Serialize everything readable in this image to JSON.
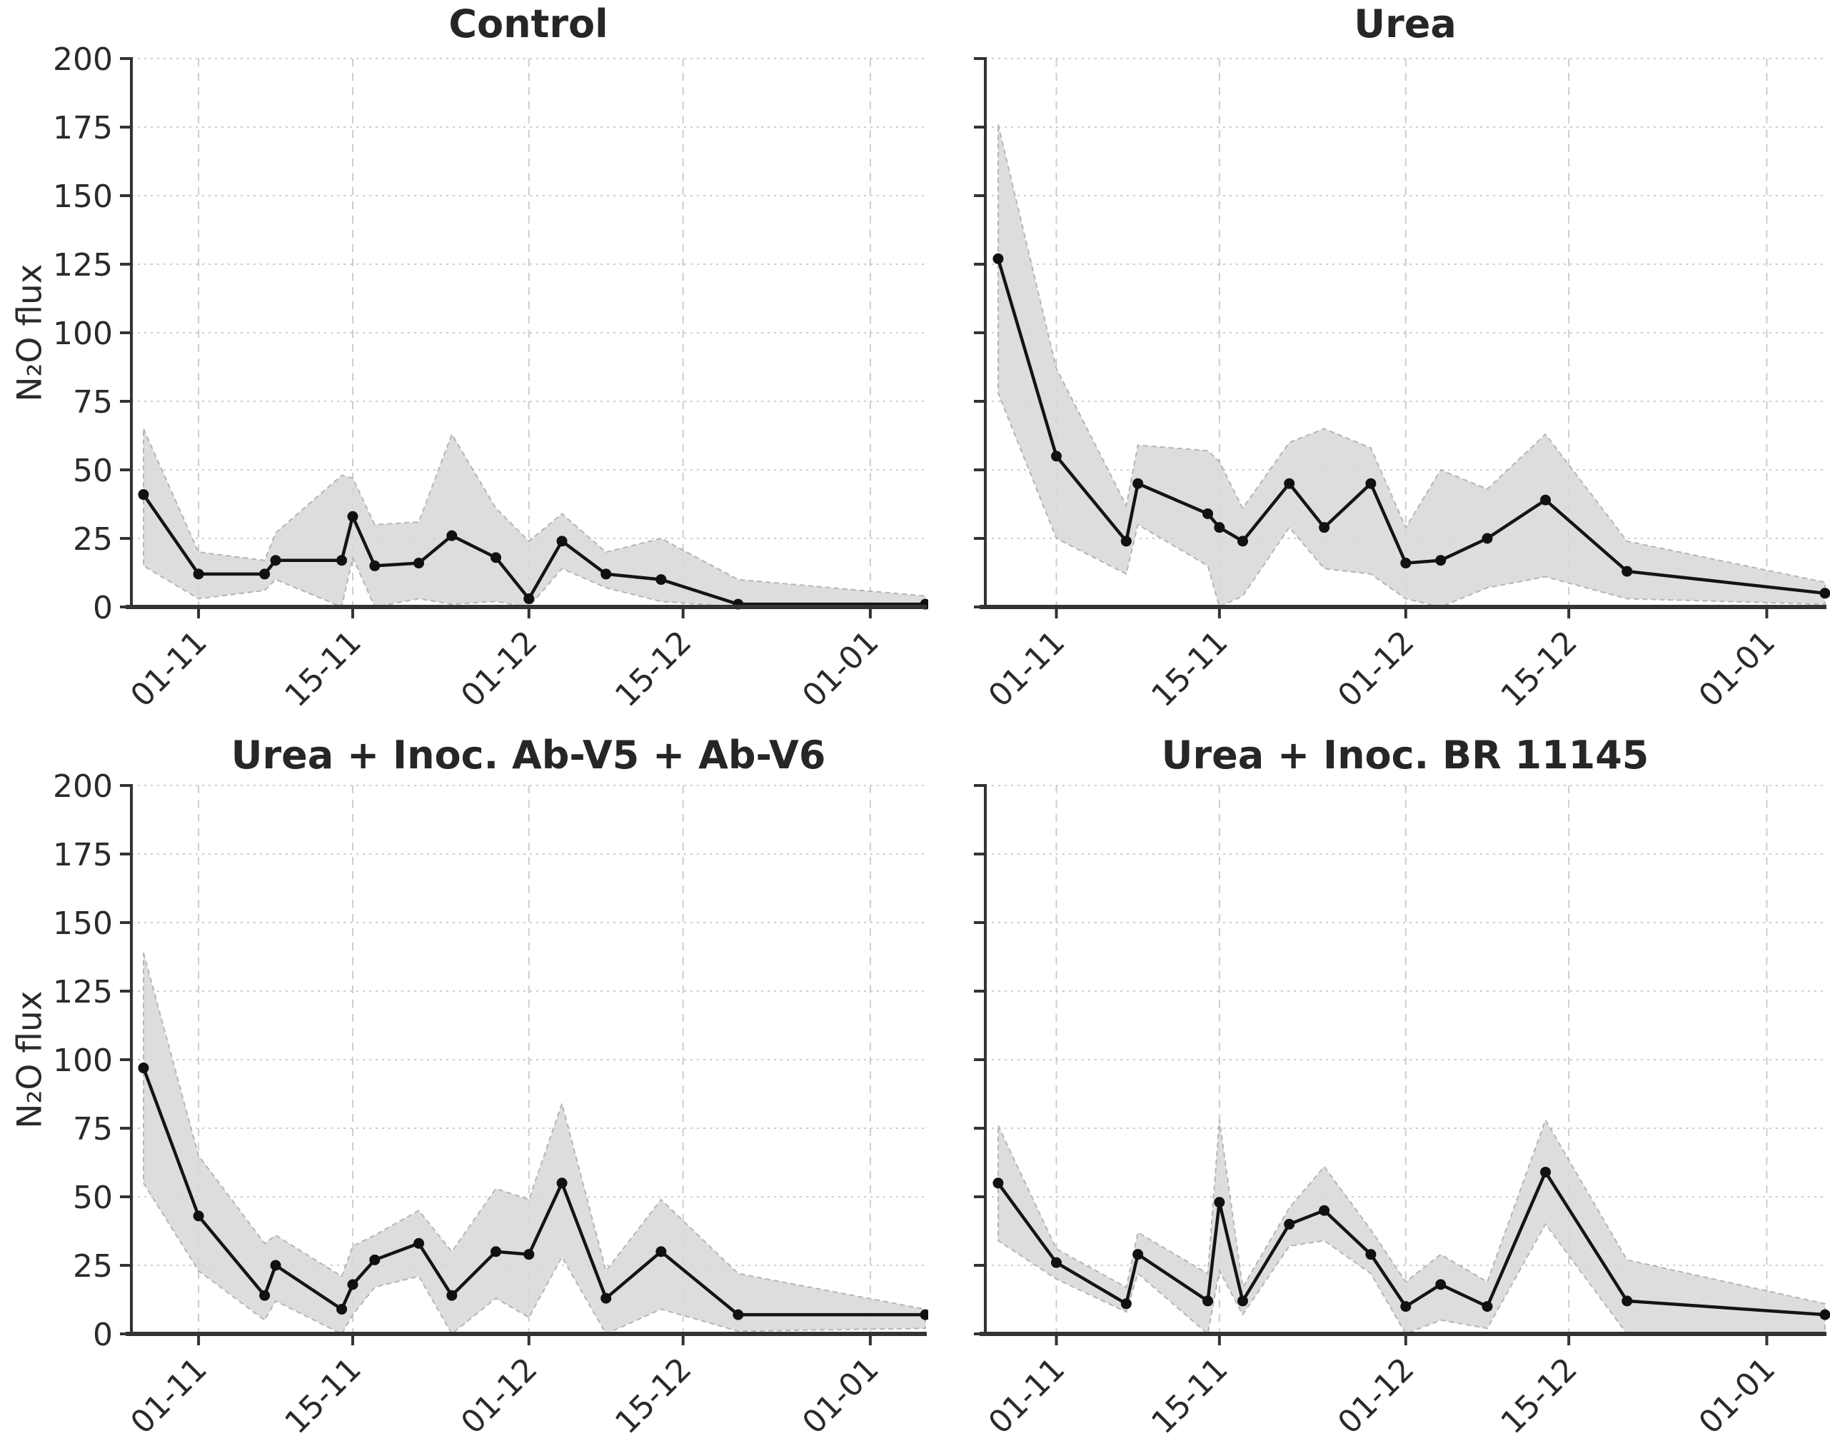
{
  "figure": {
    "background": "#ffffff",
    "title_color": "#262626",
    "text_color": "#2a2a2a",
    "axis_color": "#333333",
    "grid_color": "#cdcdcd",
    "band_fill": "#d7d7d7",
    "band_edge": "#a8a8a8",
    "line_color": "#141414",
    "marker_color": "#111111"
  },
  "chart_data": [
    {
      "type": "line",
      "title": "Control",
      "ylabel": "N₂O flux",
      "ylim": [
        0,
        200
      ],
      "yticks": [
        0,
        25,
        50,
        75,
        100,
        125,
        150,
        175,
        200
      ],
      "show_y_tick_labels": true,
      "grid": true,
      "x_tick_labels": [
        "01-11",
        "15-11",
        "01-12",
        "15-12",
        "01-01"
      ],
      "x_tick_days": [
        0,
        14,
        30,
        44,
        61
      ],
      "x_range_days": [
        -6.1,
        66
      ],
      "points": {
        "dates": [
          "27-10",
          "01-11",
          "07-11",
          "08-11",
          "14-11",
          "15-11",
          "17-11",
          "21-11",
          "24-11",
          "28-11",
          "01-12",
          "04-12",
          "08-12",
          "13-12",
          "20-12",
          "06-01"
        ],
        "days": [
          -5,
          0,
          6,
          7,
          13,
          14,
          16,
          20,
          23,
          27,
          30,
          33,
          37,
          42,
          49,
          66
        ],
        "mean": [
          41,
          12,
          12,
          17,
          17,
          33,
          15,
          16,
          26,
          18,
          3,
          24,
          12,
          10,
          1,
          1
        ],
        "band_lower": [
          15,
          3,
          6,
          10,
          0,
          18,
          0,
          3,
          1,
          2,
          0,
          14,
          7,
          2,
          0,
          0
        ],
        "band_upper": [
          65,
          20,
          17,
          27,
          48,
          47,
          30,
          31,
          63,
          36,
          24,
          34,
          20,
          25,
          10,
          4
        ]
      }
    },
    {
      "type": "line",
      "title": "Urea",
      "ylabel": "",
      "ylim": [
        0,
        200
      ],
      "yticks": [
        0,
        25,
        50,
        75,
        100,
        125,
        150,
        175,
        200
      ],
      "show_y_tick_labels": false,
      "grid": true,
      "x_tick_labels": [
        "01-11",
        "15-11",
        "01-12",
        "15-12",
        "01-01"
      ],
      "x_tick_days": [
        0,
        14,
        30,
        44,
        61
      ],
      "x_range_days": [
        -6.1,
        66
      ],
      "points": {
        "dates": [
          "27-10",
          "01-11",
          "07-11",
          "08-11",
          "14-11",
          "15-11",
          "17-11",
          "21-11",
          "24-11",
          "28-11",
          "01-12",
          "04-12",
          "08-12",
          "13-12",
          "20-12",
          "06-01"
        ],
        "days": [
          -5,
          0,
          6,
          7,
          13,
          14,
          16,
          20,
          23,
          27,
          30,
          33,
          37,
          42,
          49,
          66
        ],
        "mean": [
          127,
          55,
          24,
          45,
          34,
          29,
          24,
          45,
          29,
          45,
          16,
          17,
          25,
          39,
          13,
          5
        ],
        "band_lower": [
          78,
          25,
          12,
          30,
          15,
          0,
          4,
          29,
          14,
          12,
          3,
          0,
          7,
          11,
          3,
          1
        ],
        "band_upper": [
          176,
          87,
          37,
          59,
          57,
          53,
          36,
          60,
          65,
          58,
          29,
          50,
          43,
          63,
          24,
          9
        ]
      }
    },
    {
      "type": "line",
      "title": "Urea + Inoc. Ab-V5 + Ab-V6",
      "ylabel": "N₂O flux",
      "ylim": [
        0,
        200
      ],
      "yticks": [
        0,
        25,
        50,
        75,
        100,
        125,
        150,
        175,
        200
      ],
      "show_y_tick_labels": true,
      "grid": true,
      "x_tick_labels": [
        "01-11",
        "15-11",
        "01-12",
        "15-12",
        "01-01"
      ],
      "x_tick_days": [
        0,
        14,
        30,
        44,
        61
      ],
      "x_range_days": [
        -6.1,
        66
      ],
      "points": {
        "dates": [
          "27-10",
          "01-11",
          "07-11",
          "08-11",
          "14-11",
          "15-11",
          "17-11",
          "21-11",
          "24-11",
          "28-11",
          "01-12",
          "04-12",
          "08-12",
          "13-12",
          "20-12",
          "06-01"
        ],
        "days": [
          -5,
          0,
          6,
          7,
          13,
          14,
          16,
          20,
          23,
          27,
          30,
          33,
          37,
          42,
          49,
          66
        ],
        "mean": [
          97,
          43,
          14,
          25,
          9,
          18,
          27,
          33,
          14,
          30,
          29,
          55,
          13,
          30,
          7,
          7
        ],
        "band_lower": [
          55,
          23,
          5,
          12,
          0,
          7,
          17,
          21,
          0,
          13,
          6,
          28,
          0,
          9,
          1,
          2
        ],
        "band_upper": [
          139,
          65,
          33,
          36,
          21,
          32,
          36,
          45,
          30,
          53,
          49,
          84,
          23,
          49,
          22,
          9
        ]
      }
    },
    {
      "type": "line",
      "title": "Urea + Inoc. BR 11145",
      "ylabel": "",
      "ylim": [
        0,
        200
      ],
      "yticks": [
        0,
        25,
        50,
        75,
        100,
        125,
        150,
        175,
        200
      ],
      "show_y_tick_labels": false,
      "grid": true,
      "x_tick_labels": [
        "01-11",
        "15-11",
        "01-12",
        "15-12",
        "01-01"
      ],
      "x_tick_days": [
        0,
        14,
        30,
        44,
        61
      ],
      "x_range_days": [
        -6.1,
        66
      ],
      "points": {
        "dates": [
          "27-10",
          "01-11",
          "07-11",
          "08-11",
          "14-11",
          "15-11",
          "17-11",
          "21-11",
          "24-11",
          "28-11",
          "01-12",
          "04-12",
          "08-12",
          "13-12",
          "20-12",
          "06-01"
        ],
        "days": [
          -5,
          0,
          6,
          7,
          13,
          14,
          16,
          20,
          23,
          27,
          30,
          33,
          37,
          42,
          49,
          66
        ],
        "mean": [
          55,
          26,
          11,
          29,
          12,
          48,
          12,
          40,
          45,
          29,
          10,
          18,
          10,
          59,
          12,
          7
        ],
        "band_lower": [
          34,
          20,
          8,
          22,
          0,
          23,
          7,
          32,
          34,
          22,
          0,
          5,
          2,
          40,
          0,
          0
        ],
        "band_upper": [
          76,
          31,
          17,
          37,
          22,
          78,
          17,
          46,
          61,
          38,
          19,
          29,
          19,
          78,
          27,
          11
        ]
      }
    }
  ]
}
